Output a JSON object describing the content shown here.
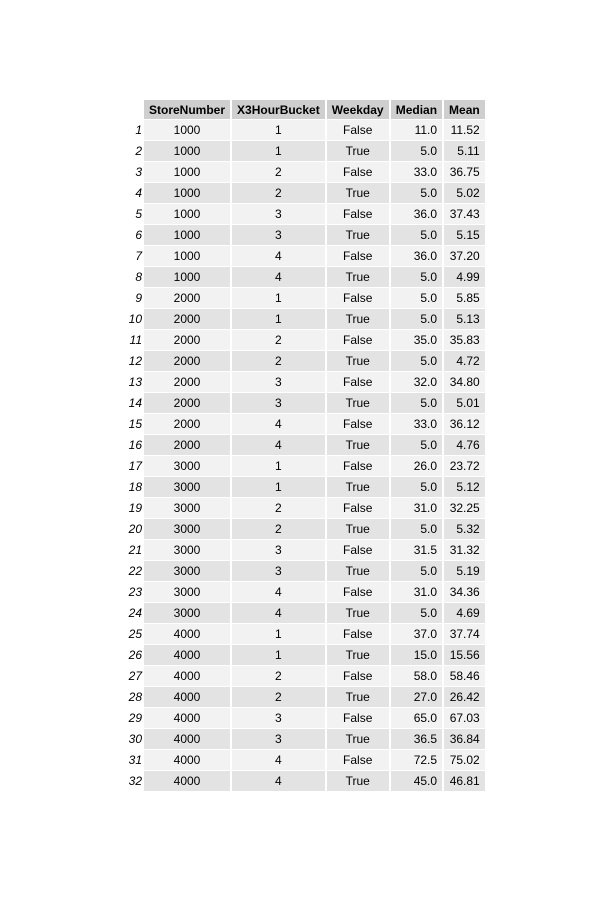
{
  "table": {
    "columns": [
      "StoreNumber",
      "X3HourBucket",
      "Weekday",
      "Median",
      "Mean"
    ],
    "rows": [
      {
        "idx": "1",
        "store": "1000",
        "bucket": "1",
        "weekday": "False",
        "median": "11.0",
        "mean": "11.52"
      },
      {
        "idx": "2",
        "store": "1000",
        "bucket": "1",
        "weekday": "True",
        "median": "5.0",
        "mean": "5.11"
      },
      {
        "idx": "3",
        "store": "1000",
        "bucket": "2",
        "weekday": "False",
        "median": "33.0",
        "mean": "36.75"
      },
      {
        "idx": "4",
        "store": "1000",
        "bucket": "2",
        "weekday": "True",
        "median": "5.0",
        "mean": "5.02"
      },
      {
        "idx": "5",
        "store": "1000",
        "bucket": "3",
        "weekday": "False",
        "median": "36.0",
        "mean": "37.43"
      },
      {
        "idx": "6",
        "store": "1000",
        "bucket": "3",
        "weekday": "True",
        "median": "5.0",
        "mean": "5.15"
      },
      {
        "idx": "7",
        "store": "1000",
        "bucket": "4",
        "weekday": "False",
        "median": "36.0",
        "mean": "37.20"
      },
      {
        "idx": "8",
        "store": "1000",
        "bucket": "4",
        "weekday": "True",
        "median": "5.0",
        "mean": "4.99"
      },
      {
        "idx": "9",
        "store": "2000",
        "bucket": "1",
        "weekday": "False",
        "median": "5.0",
        "mean": "5.85"
      },
      {
        "idx": "10",
        "store": "2000",
        "bucket": "1",
        "weekday": "True",
        "median": "5.0",
        "mean": "5.13"
      },
      {
        "idx": "11",
        "store": "2000",
        "bucket": "2",
        "weekday": "False",
        "median": "35.0",
        "mean": "35.83"
      },
      {
        "idx": "12",
        "store": "2000",
        "bucket": "2",
        "weekday": "True",
        "median": "5.0",
        "mean": "4.72"
      },
      {
        "idx": "13",
        "store": "2000",
        "bucket": "3",
        "weekday": "False",
        "median": "32.0",
        "mean": "34.80"
      },
      {
        "idx": "14",
        "store": "2000",
        "bucket": "3",
        "weekday": "True",
        "median": "5.0",
        "mean": "5.01"
      },
      {
        "idx": "15",
        "store": "2000",
        "bucket": "4",
        "weekday": "False",
        "median": "33.0",
        "mean": "36.12"
      },
      {
        "idx": "16",
        "store": "2000",
        "bucket": "4",
        "weekday": "True",
        "median": "5.0",
        "mean": "4.76"
      },
      {
        "idx": "17",
        "store": "3000",
        "bucket": "1",
        "weekday": "False",
        "median": "26.0",
        "mean": "23.72"
      },
      {
        "idx": "18",
        "store": "3000",
        "bucket": "1",
        "weekday": "True",
        "median": "5.0",
        "mean": "5.12"
      },
      {
        "idx": "19",
        "store": "3000",
        "bucket": "2",
        "weekday": "False",
        "median": "31.0",
        "mean": "32.25"
      },
      {
        "idx": "20",
        "store": "3000",
        "bucket": "2",
        "weekday": "True",
        "median": "5.0",
        "mean": "5.32"
      },
      {
        "idx": "21",
        "store": "3000",
        "bucket": "3",
        "weekday": "False",
        "median": "31.5",
        "mean": "31.32"
      },
      {
        "idx": "22",
        "store": "3000",
        "bucket": "3",
        "weekday": "True",
        "median": "5.0",
        "mean": "5.19"
      },
      {
        "idx": "23",
        "store": "3000",
        "bucket": "4",
        "weekday": "False",
        "median": "31.0",
        "mean": "34.36"
      },
      {
        "idx": "24",
        "store": "3000",
        "bucket": "4",
        "weekday": "True",
        "median": "5.0",
        "mean": "4.69"
      },
      {
        "idx": "25",
        "store": "4000",
        "bucket": "1",
        "weekday": "False",
        "median": "37.0",
        "mean": "37.74"
      },
      {
        "idx": "26",
        "store": "4000",
        "bucket": "1",
        "weekday": "True",
        "median": "15.0",
        "mean": "15.56"
      },
      {
        "idx": "27",
        "store": "4000",
        "bucket": "2",
        "weekday": "False",
        "median": "58.0",
        "mean": "58.46"
      },
      {
        "idx": "28",
        "store": "4000",
        "bucket": "2",
        "weekday": "True",
        "median": "27.0",
        "mean": "26.42"
      },
      {
        "idx": "29",
        "store": "4000",
        "bucket": "3",
        "weekday": "False",
        "median": "65.0",
        "mean": "67.03"
      },
      {
        "idx": "30",
        "store": "4000",
        "bucket": "3",
        "weekday": "True",
        "median": "36.5",
        "mean": "36.84"
      },
      {
        "idx": "31",
        "store": "4000",
        "bucket": "4",
        "weekday": "False",
        "median": "72.5",
        "mean": "75.02"
      },
      {
        "idx": "32",
        "store": "4000",
        "bucket": "4",
        "weekday": "True",
        "median": "45.0",
        "mean": "46.81"
      }
    ]
  }
}
